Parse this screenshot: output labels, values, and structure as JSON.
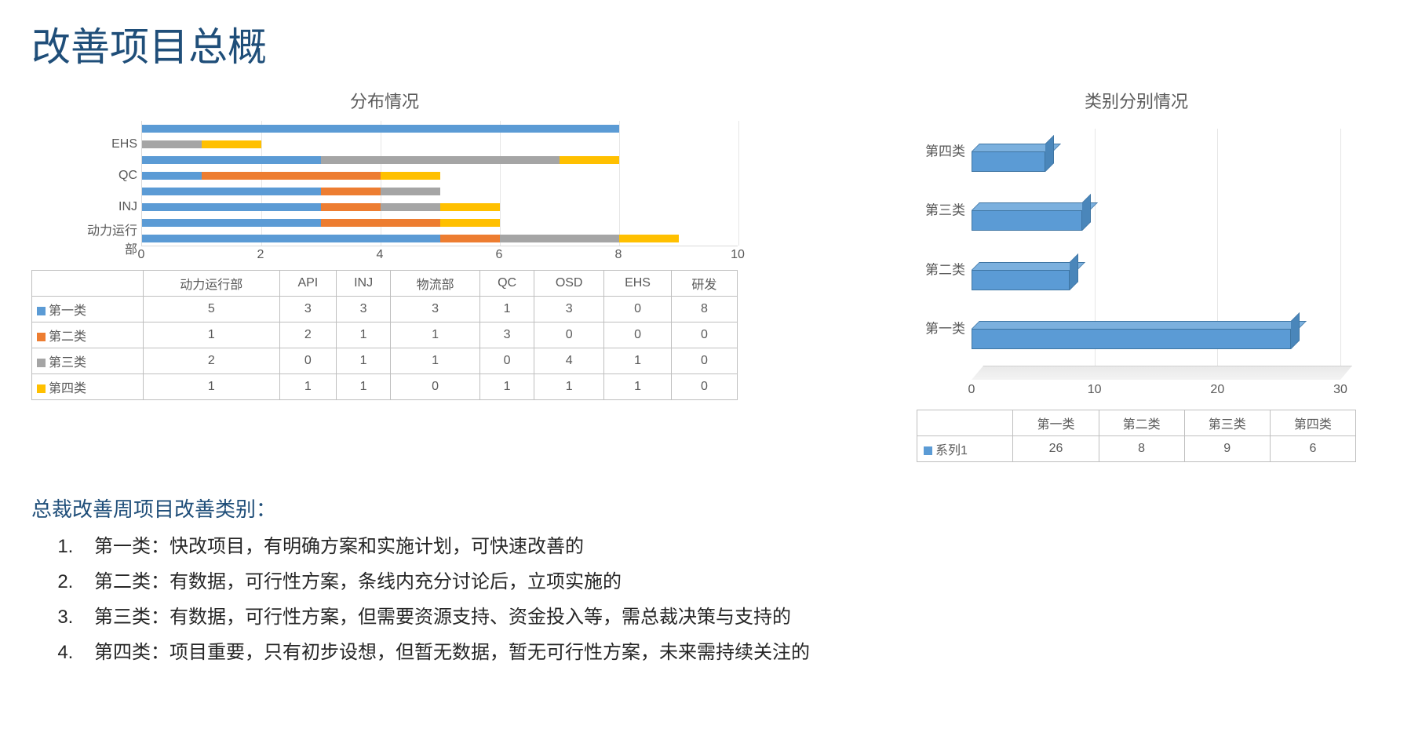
{
  "page_title": "改善项目总概",
  "left_chart": {
    "title": "分布情况",
    "type": "stacked-horizontal-bar",
    "x_max": 10,
    "x_tick_step": 2,
    "x_ticks": [
      0,
      2,
      4,
      6,
      8,
      10
    ],
    "departments": [
      "动力运行部",
      "API",
      "INJ",
      "物流部",
      "QC",
      "OSD",
      "EHS",
      "研发"
    ],
    "y_axis_visible_labels": [
      "EHS",
      "QC",
      "INJ",
      "动力运行部"
    ],
    "series": [
      {
        "key": "cat1",
        "label": "第一类",
        "color": "#5b9bd5",
        "values": [
          5,
          3,
          3,
          3,
          1,
          3,
          0,
          8
        ]
      },
      {
        "key": "cat2",
        "label": "第二类",
        "color": "#ed7d31",
        "values": [
          1,
          2,
          1,
          1,
          3,
          0,
          0,
          0
        ]
      },
      {
        "key": "cat3",
        "label": "第三类",
        "color": "#a5a5a5",
        "values": [
          2,
          0,
          1,
          1,
          0,
          4,
          1,
          0
        ]
      },
      {
        "key": "cat4",
        "label": "第四类",
        "color": "#ffc000",
        "values": [
          1,
          1,
          1,
          0,
          1,
          1,
          1,
          0
        ]
      }
    ],
    "grid_color": "#e6e6e6",
    "axis_color": "#d9d9d9",
    "label_fontsize": 16
  },
  "left_table": {
    "columns": [
      "动力运行部",
      "API",
      "INJ",
      "物流部",
      "QC",
      "OSD",
      "EHS",
      "研发"
    ],
    "rows": [
      {
        "label": "第一类",
        "color": "#5b9bd5",
        "cells": [
          5,
          3,
          3,
          3,
          1,
          3,
          0,
          8
        ]
      },
      {
        "label": "第二类",
        "color": "#ed7d31",
        "cells": [
          1,
          2,
          1,
          1,
          3,
          0,
          0,
          0
        ]
      },
      {
        "label": "第三类",
        "color": "#a5a5a5",
        "cells": [
          2,
          0,
          1,
          1,
          0,
          4,
          1,
          0
        ]
      },
      {
        "label": "第四类",
        "color": "#ffc000",
        "cells": [
          1,
          1,
          1,
          0,
          1,
          1,
          1,
          0
        ]
      }
    ]
  },
  "right_chart": {
    "title": "类别分别情况",
    "type": "3d-horizontal-bar",
    "x_max": 30,
    "x_tick_step": 10,
    "x_ticks": [
      0,
      10,
      20,
      30
    ],
    "bar_color": "#5b9bd5",
    "bar_top_color": "#7bb0de",
    "bar_side_color": "#4a86ba",
    "bar_border": "#3e75a3",
    "categories": [
      "第一类",
      "第二类",
      "第三类",
      "第四类"
    ],
    "values": [
      26,
      8,
      9,
      6
    ],
    "label_fontsize": 17
  },
  "right_table": {
    "columns": [
      "第一类",
      "第二类",
      "第三类",
      "第四类"
    ],
    "rows": [
      {
        "label": "系列1",
        "color": "#5b9bd5",
        "cells": [
          26,
          8,
          9,
          6
        ]
      }
    ]
  },
  "category_section": {
    "heading": "总裁改善周项目改善类别：",
    "items": [
      "第一类：快改项目，有明确方案和实施计划，可快速改善的",
      "第二类：有数据，可行性方案，条线内充分讨论后，立项实施的",
      "第三类：有数据，可行性方案，但需要资源支持、资金投入等，需总裁决策与支持的",
      "第四类：项目重要，只有初步设想，但暂无数据，暂无可行性方案，未来需持续关注的"
    ]
  }
}
